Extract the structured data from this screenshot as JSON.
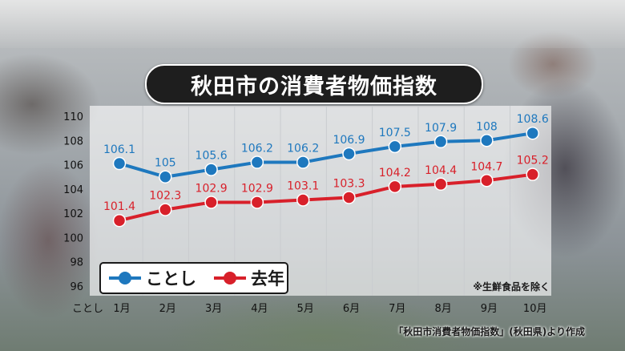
{
  "title": "秋田市の消費者物価指数",
  "note": "※生鮮食品を除く",
  "source": "「秋田市消費者物価指数」(秋田県)より作成",
  "x_axis_prefix": "ことし",
  "colors": {
    "this_year": "#1e78be",
    "last_year": "#d8202a"
  },
  "chart_data": {
    "type": "line",
    "categories": [
      "1月",
      "2月",
      "3月",
      "4月",
      "5月",
      "6月",
      "7月",
      "8月",
      "9月",
      "10月"
    ],
    "series": [
      {
        "name": "ことし",
        "values": [
          106.1,
          105,
          105.6,
          106.2,
          106.2,
          106.9,
          107.5,
          107.9,
          108,
          108.6
        ],
        "labels": [
          "106.1",
          "105",
          "105.6",
          "106.2",
          "106.2",
          "106.9",
          "107.5",
          "107.9",
          "108",
          "108.6"
        ]
      },
      {
        "name": "去年",
        "values": [
          101.4,
          102.3,
          102.9,
          102.9,
          103.1,
          103.3,
          104.2,
          104.4,
          104.7,
          105.2
        ],
        "labels": [
          "101.4",
          "102.3",
          "102.9",
          "102.9",
          "103.1",
          "103.3",
          "104.2",
          "104.4",
          "104.7",
          "105.2"
        ]
      }
    ],
    "yticks": [
      "110",
      "108",
      "106",
      "104",
      "102",
      "100",
      "98",
      "96"
    ],
    "ylim": [
      96,
      110
    ],
    "grid": "vertical"
  }
}
